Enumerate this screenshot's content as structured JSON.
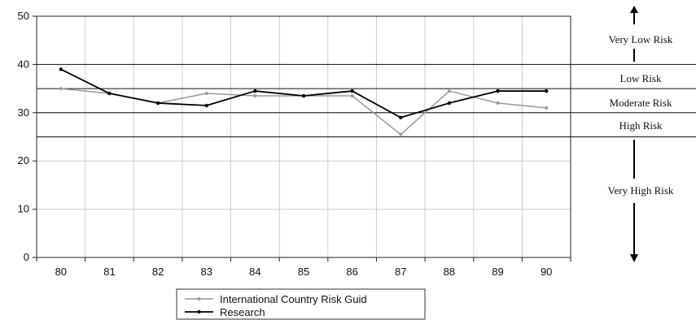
{
  "chart_data": {
    "type": "line",
    "title": "",
    "xlabel": "",
    "ylabel": "",
    "categories": [
      "80",
      "81",
      "82",
      "83",
      "84",
      "85",
      "86",
      "87",
      "88",
      "89",
      "90"
    ],
    "ylim": [
      0,
      50
    ],
    "yticks": [
      "0",
      "10",
      "20",
      "30",
      "40",
      "50"
    ],
    "grid": true,
    "series": [
      {
        "name": "International Country Risk Guid",
        "color": "#999999",
        "values": [
          35,
          34,
          32,
          34,
          33.5,
          33.5,
          33.5,
          25.5,
          34.5,
          32,
          31
        ]
      },
      {
        "name": "Research",
        "color": "#000000",
        "values": [
          39,
          34,
          32,
          31.5,
          34.5,
          33.5,
          34.5,
          29,
          32,
          34.5,
          34.5
        ]
      }
    ],
    "risk_thresholds": [
      40,
      35,
      30,
      25
    ],
    "risk_zones": [
      {
        "label": "Very Low Risk"
      },
      {
        "label": "Low Risk"
      },
      {
        "label": "Moderate Risk"
      },
      {
        "label": "High Risk"
      },
      {
        "label": "Very High Risk"
      }
    ],
    "legend_position": "bottom-left"
  }
}
